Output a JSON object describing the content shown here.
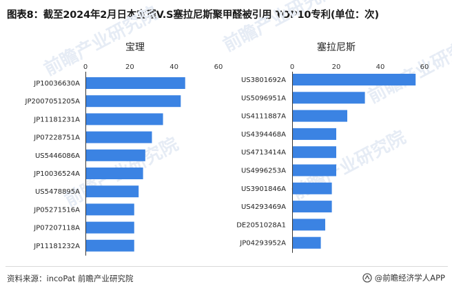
{
  "title": {
    "label": "图表8：",
    "text": "截至2024年2月日本宝理V.S塞拉尼斯聚甲醛被引用 TOP10专利(单位：次)"
  },
  "chart_data": [
    {
      "type": "bar",
      "orientation": "horizontal",
      "title": "宝理",
      "categories": [
        "JP10036630A",
        "JP2007051205A",
        "JP11181231A",
        "JP07228751A",
        "US5446086A",
        "JP10036524A",
        "US5478895A",
        "JP05271516A",
        "JP07207118A",
        "JP11181232A"
      ],
      "values": [
        45,
        43,
        35,
        30,
        27,
        26,
        24,
        22,
        22,
        22
      ],
      "xlim": [
        0,
        60
      ],
      "ticks": [
        0,
        20,
        40,
        60
      ],
      "axis_position": "top",
      "bar_color": "#3b83e3"
    },
    {
      "type": "bar",
      "orientation": "horizontal",
      "title": "塞拉尼斯",
      "categories": [
        "US3801692A",
        "US5096951A",
        "US4111887A",
        "US4394468A",
        "US4713414A",
        "US4996253A",
        "US3901846A",
        "US4293469A",
        "DE2051028A1",
        "JP04293952A"
      ],
      "values": [
        56,
        33,
        25,
        20,
        20,
        20,
        18,
        18,
        15,
        13
      ],
      "xlim": [
        0,
        60
      ],
      "ticks": [
        0,
        20,
        40,
        60
      ],
      "axis_position": "top",
      "bar_color": "#3b83e3"
    }
  ],
  "footer": {
    "source": "资料来源：incoPat 前瞻产业研究院",
    "brand": "@前瞻经济学人APP"
  },
  "watermark": {
    "text": "前瞻产业研究院",
    "color": "#e6ecf5"
  }
}
